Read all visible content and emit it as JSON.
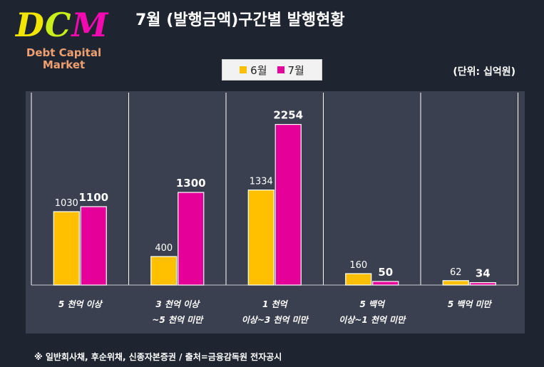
{
  "logo": {
    "d": "D",
    "c": "C",
    "m": "M",
    "sub_line1": "Debt Capital",
    "sub_line2": "Market"
  },
  "title": "7월 (발행금액)구간별 발행현황",
  "unit": "(단위: 십억원)",
  "footnote": "※ 일반회사채, 후순위채, 신종자본증권 / 출처=금융감독원 전자공시",
  "colors": {
    "june": "#ffc000",
    "july": "#e6009a",
    "panel": "#3a4050",
    "background": "#1f2530"
  },
  "chart_data": {
    "type": "bar",
    "categories": [
      [
        "5 천억 이상"
      ],
      [
        "3 천억 이상",
        "~5 천억 미만"
      ],
      [
        "1 천억",
        "이상~3 천억 미만"
      ],
      [
        "5 백억",
        "이상~1 천억 미만"
      ],
      [
        "5 백억 미만"
      ]
    ],
    "series": [
      {
        "name": "6월",
        "values": [
          1030,
          400,
          1334,
          160,
          62
        ]
      },
      {
        "name": "7월",
        "values": [
          1100,
          1300,
          2254,
          50,
          34
        ]
      }
    ],
    "ylim": [
      0,
      2600
    ],
    "legend_position": "top",
    "grid": false
  }
}
